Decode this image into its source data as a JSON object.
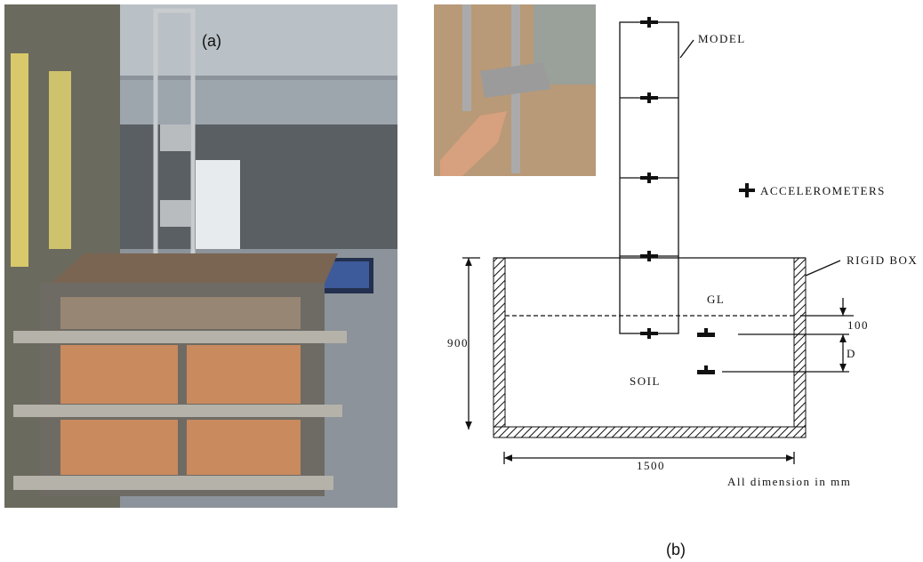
{
  "photo_label": "(a)",
  "figure_label": "(b)",
  "diagram": {
    "model_label": "MODEL",
    "legend_label": "ACCELEROMETERS",
    "box_label": "RIGID BOX",
    "ground_label": "GL",
    "soil_label": "SOIL",
    "depth_top": "100",
    "depth_spacing": "D",
    "box_height": "900",
    "box_width": "1500",
    "units_note": "All dimension in mm"
  }
}
